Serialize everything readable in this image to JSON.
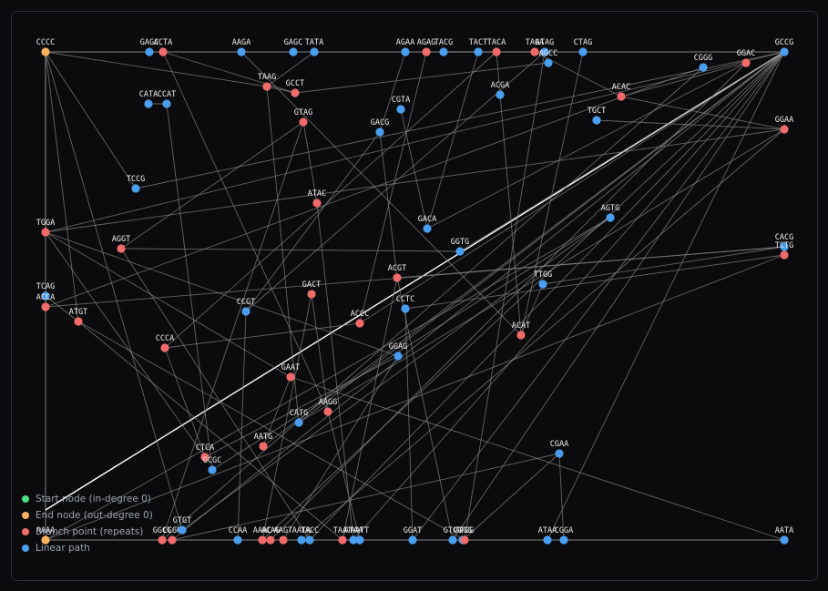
{
  "nodes": [
    {
      "label": "CCCC",
      "color": "#fbb25e"
    },
    {
      "label": "GAGC",
      "color": "#4a9ef0"
    },
    {
      "label": "ACTA",
      "color": "#f26b6b"
    },
    {
      "label": "AAGA",
      "color": "#4a9ef0"
    },
    {
      "label": "GAGC",
      "color": "#4a9ef0"
    },
    {
      "label": "TATA",
      "color": "#4a9ef0"
    },
    {
      "label": "AGAA",
      "color": "#4a9ef0"
    },
    {
      "label": "AGAG",
      "color": "#f26b6b"
    },
    {
      "label": "TACG",
      "color": "#4a9ef0"
    },
    {
      "label": "TACT",
      "color": "#4a9ef0"
    },
    {
      "label": "TACA",
      "color": "#f26b6b"
    },
    {
      "label": "TAGA",
      "color": "#f26b6b"
    },
    {
      "label": "ATAG",
      "color": "#4a9ef0"
    },
    {
      "label": "AGCC",
      "color": "#4a9ef0"
    },
    {
      "label": "CTAG",
      "color": "#4a9ef0"
    },
    {
      "label": "GCCG",
      "color": "#4a9ef0"
    },
    {
      "label": "CGGG",
      "color": "#4a9ef0"
    },
    {
      "label": "GGAC",
      "color": "#f26b6b"
    },
    {
      "label": "TAAG",
      "color": "#f26b6b"
    },
    {
      "label": "GCCT",
      "color": "#f26b6b"
    },
    {
      "label": "CATA",
      "color": "#4a9ef0"
    },
    {
      "label": "CCAT",
      "color": "#4a9ef0"
    },
    {
      "label": "ACGA",
      "color": "#4a9ef0"
    },
    {
      "label": "ACAC",
      "color": "#f26b6b"
    },
    {
      "label": "CGTA",
      "color": "#4a9ef0"
    },
    {
      "label": "GTAG",
      "color": "#f26b6b"
    },
    {
      "label": "GACG",
      "color": "#4a9ef0"
    },
    {
      "label": "TGCT",
      "color": "#4a9ef0"
    },
    {
      "label": "GGAA",
      "color": "#f26b6b"
    },
    {
      "label": "TCCG",
      "color": "#4a9ef0"
    },
    {
      "label": "ATAC",
      "color": "#f26b6b"
    },
    {
      "label": "TGGA",
      "color": "#f26b6b"
    },
    {
      "label": "GACA",
      "color": "#4a9ef0"
    },
    {
      "label": "AGTG",
      "color": "#4a9ef0"
    },
    {
      "label": "AGGT",
      "color": "#f26b6b"
    },
    {
      "label": "GGTG",
      "color": "#4a9ef0"
    },
    {
      "label": "CACG",
      "color": "#4a9ef0"
    },
    {
      "label": "TCTG",
      "color": "#f26b6b"
    },
    {
      "label": "ACGT",
      "color": "#f26b6b"
    },
    {
      "label": "TTGG",
      "color": "#4a9ef0"
    },
    {
      "label": "TCAG",
      "color": "#4a9ef0"
    },
    {
      "label": "ACCA",
      "color": "#f26b6b"
    },
    {
      "label": "GACT",
      "color": "#f26b6b"
    },
    {
      "label": "CCGT",
      "color": "#4a9ef0"
    },
    {
      "label": "CCTC",
      "color": "#4a9ef0"
    },
    {
      "label": "ATGT",
      "color": "#f26b6b"
    },
    {
      "label": "ACCC",
      "color": "#f26b6b"
    },
    {
      "label": "ACAT",
      "color": "#f26b6b"
    },
    {
      "label": "CCCA",
      "color": "#f26b6b"
    },
    {
      "label": "GGAG",
      "color": "#4a9ef0"
    },
    {
      "label": "GAAT",
      "color": "#f26b6b"
    },
    {
      "label": "AAGG",
      "color": "#f26b6b"
    },
    {
      "label": "CATG",
      "color": "#4a9ef0"
    },
    {
      "label": "CGAA",
      "color": "#4a9ef0"
    },
    {
      "label": "AATG",
      "color": "#f26b6b"
    },
    {
      "label": "CTCA",
      "color": "#f26b6b"
    },
    {
      "label": "GCGC",
      "color": "#4a9ef0"
    },
    {
      "label": "AAAA",
      "color": "#fbb25e"
    },
    {
      "label": "GGCG",
      "color": "#f26b6b"
    },
    {
      "label": "CCGG",
      "color": "#f26b6b"
    },
    {
      "label": "GTGT",
      "color": "#4a9ef0"
    },
    {
      "label": "CCAA",
      "color": "#4a9ef0"
    },
    {
      "label": "AAAC",
      "color": "#f26b6b"
    },
    {
      "label": "ACAG",
      "color": "#f26b6b"
    },
    {
      "label": "AAGT",
      "color": "#f26b6b"
    },
    {
      "label": "AATA",
      "color": "#4a9ef0"
    },
    {
      "label": "TACC",
      "color": "#4a9ef0"
    },
    {
      "label": "TAAT",
      "color": "#f26b6b"
    },
    {
      "label": "ATAA",
      "color": "#4a9ef0"
    },
    {
      "label": "AATT",
      "color": "#4a9ef0"
    },
    {
      "label": "GGAT",
      "color": "#4a9ef0"
    },
    {
      "label": "GTCG",
      "color": "#4a9ef0"
    },
    {
      "label": "CTGG",
      "color": "#4a9ef0"
    },
    {
      "label": "ATGG",
      "color": "#f26b6b"
    },
    {
      "label": "ATAA",
      "color": "#4a9ef0"
    },
    {
      "label": "CGGA",
      "color": "#4a9ef0"
    },
    {
      "label": "AATA",
      "color": "#4a9ef0"
    }
  ],
  "legend": [
    {
      "label": "Start node (in-degree 0)",
      "color": "#4ade80"
    },
    {
      "label": "End node (out-degree 0)",
      "color": "#fbb25e"
    },
    {
      "label": "Branch point (repeats)",
      "color": "#f26b6b"
    },
    {
      "label": "Linear path",
      "color": "#4a9ef0"
    }
  ]
}
